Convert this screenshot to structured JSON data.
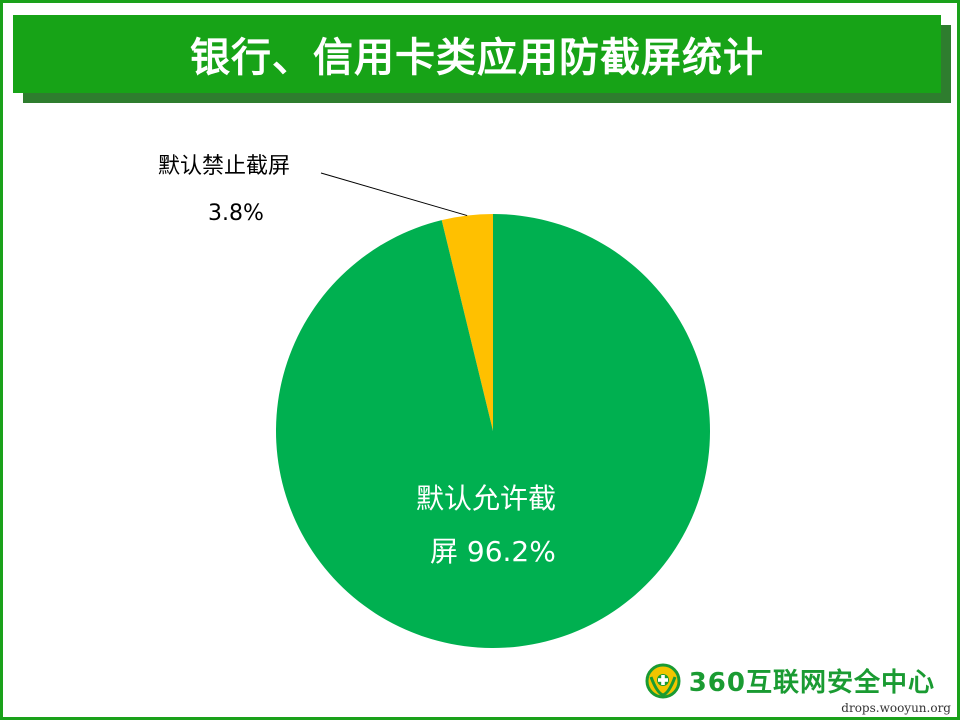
{
  "page": {
    "title": "银行、信用卡类应用防截屏统计"
  },
  "chart_data": {
    "type": "pie",
    "title": "银行、信用卡类应用防截屏统计",
    "start_angle": "top, clockwise",
    "slices": [
      {
        "label": "默认禁止截屏",
        "value": 3.8,
        "value_label": "3.8%",
        "color": "#ffc000"
      },
      {
        "label_line1": "默认允许截",
        "label_line2_prefix": "屏",
        "label": "默认允许截屏",
        "value": 96.2,
        "value_label": "96.2%",
        "color": "#00b050"
      }
    ]
  },
  "labels": {
    "small_name": "默认禁止截屏",
    "small_value": "3.8%",
    "big_line1": "默认允许截",
    "big_line2": "屏 96.2%"
  },
  "logo": {
    "text": "360互联网安全中心",
    "icon": "360-guard-icon"
  },
  "watermark": "drops.wooyun.org"
}
